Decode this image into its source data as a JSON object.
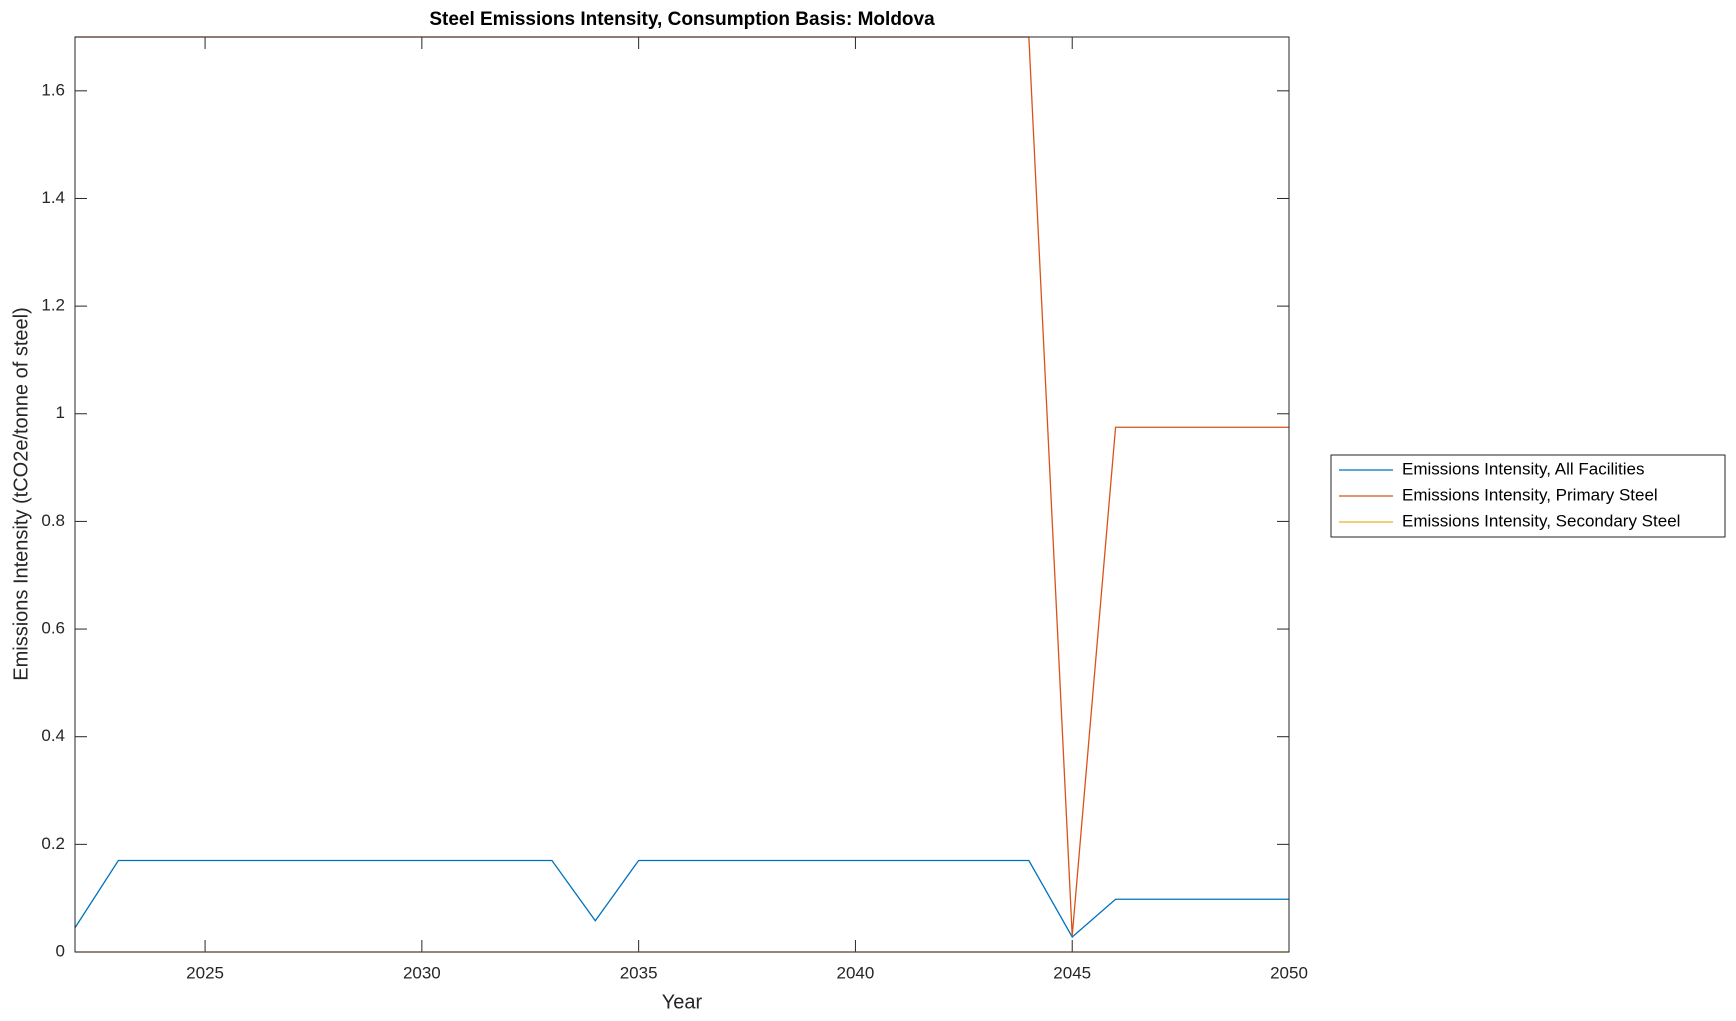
{
  "chart_data": {
    "type": "line",
    "title": "Steel Emissions Intensity, Consumption Basis: Moldova",
    "xlabel": "Year",
    "ylabel": "Emissions Intensity (tCO2e/tonne of steel)",
    "x": [
      2022,
      2023,
      2024,
      2025,
      2026,
      2027,
      2028,
      2029,
      2030,
      2031,
      2032,
      2033,
      2034,
      2035,
      2036,
      2037,
      2038,
      2039,
      2040,
      2041,
      2042,
      2043,
      2044,
      2045,
      2046,
      2047,
      2048,
      2049,
      2050
    ],
    "series": [
      {
        "name": "Emissions Intensity, All Facilities",
        "color": "#0072bd",
        "values": [
          0.045,
          0.17,
          0.17,
          0.17,
          0.17,
          0.17,
          0.17,
          0.17,
          0.17,
          0.17,
          0.17,
          0.17,
          0.058,
          0.17,
          0.17,
          0.17,
          0.17,
          0.17,
          0.17,
          0.17,
          0.17,
          0.17,
          0.17,
          0.028,
          0.098,
          0.098,
          0.098,
          0.098,
          0.098
        ]
      },
      {
        "name": "Emissions Intensity, Primary Steel",
        "color": "#d95319",
        "values": [
          1.7,
          1.7,
          1.7,
          1.7,
          1.7,
          1.7,
          1.7,
          1.7,
          1.7,
          1.7,
          1.7,
          1.7,
          1.7,
          1.7,
          1.7,
          1.7,
          1.7,
          1.7,
          1.7,
          1.7,
          1.7,
          1.7,
          1.7,
          0.03,
          0.975,
          0.975,
          0.975,
          0.975,
          0.975
        ]
      },
      {
        "name": "Emissions Intensity, Secondary Steel",
        "color": "#edb120",
        "values": [
          0,
          0,
          0,
          0,
          0,
          0,
          0,
          0,
          0,
          0,
          0,
          0,
          0,
          0,
          0,
          0,
          0,
          0,
          0,
          0,
          0,
          0,
          0,
          0,
          0,
          0,
          0,
          0,
          0
        ]
      }
    ],
    "xlim": [
      2022,
      2050
    ],
    "xticks": [
      2025,
      2030,
      2035,
      2040,
      2045,
      2050
    ],
    "ylim": [
      0,
      1.7
    ],
    "yticks": [
      0,
      0.2,
      0.4,
      0.6,
      0.8,
      1,
      1.2,
      1.4,
      1.6
    ],
    "grid": false,
    "legend": "east-outside"
  }
}
